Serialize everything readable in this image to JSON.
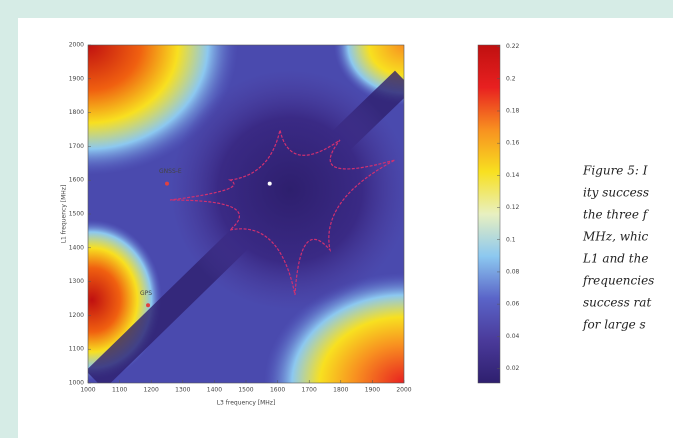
{
  "chart_data": {
    "type": "heatmap",
    "xlabel": "L3 frequency [MHz]",
    "ylabel": "L1 frequency [MHz]",
    "xlim": [
      1000,
      2000
    ],
    "ylim": [
      1000,
      2000
    ],
    "xticks": [
      1000,
      1100,
      1200,
      1300,
      1400,
      1500,
      1600,
      1700,
      1800,
      1900,
      2000
    ],
    "yticks": [
      1000,
      1100,
      1200,
      1300,
      1400,
      1500,
      1600,
      1700,
      1800,
      1900,
      2000
    ],
    "clim": [
      0.011,
      0.221
    ],
    "cticks": [
      0.02,
      0.04,
      0.06,
      0.08,
      0.1,
      0.12,
      0.14,
      0.16,
      0.18,
      0.2,
      0.22
    ],
    "colors": [
      "#2e1f6e",
      "#4a3a9a",
      "#5a64c8",
      "#8cc8f0",
      "#e8f0c0",
      "#f8e020",
      "#f89020",
      "#e82020",
      "#c01010"
    ],
    "points": [
      {
        "label": "GNSS-E",
        "x": 1250,
        "y": 1590,
        "color": "#e04040"
      },
      {
        "label": "GPS",
        "x": 1190,
        "y": 1230,
        "color": "#e04040"
      },
      {
        "x": 1575,
        "y": 1590,
        "color": "#ffffff"
      }
    ]
  },
  "caption": {
    "lines": [
      "Figure 5: I",
      "ity success",
      "the three f",
      "MHz, whic",
      "L1 and the",
      "frequencies",
      "success rat",
      "for large s"
    ]
  }
}
